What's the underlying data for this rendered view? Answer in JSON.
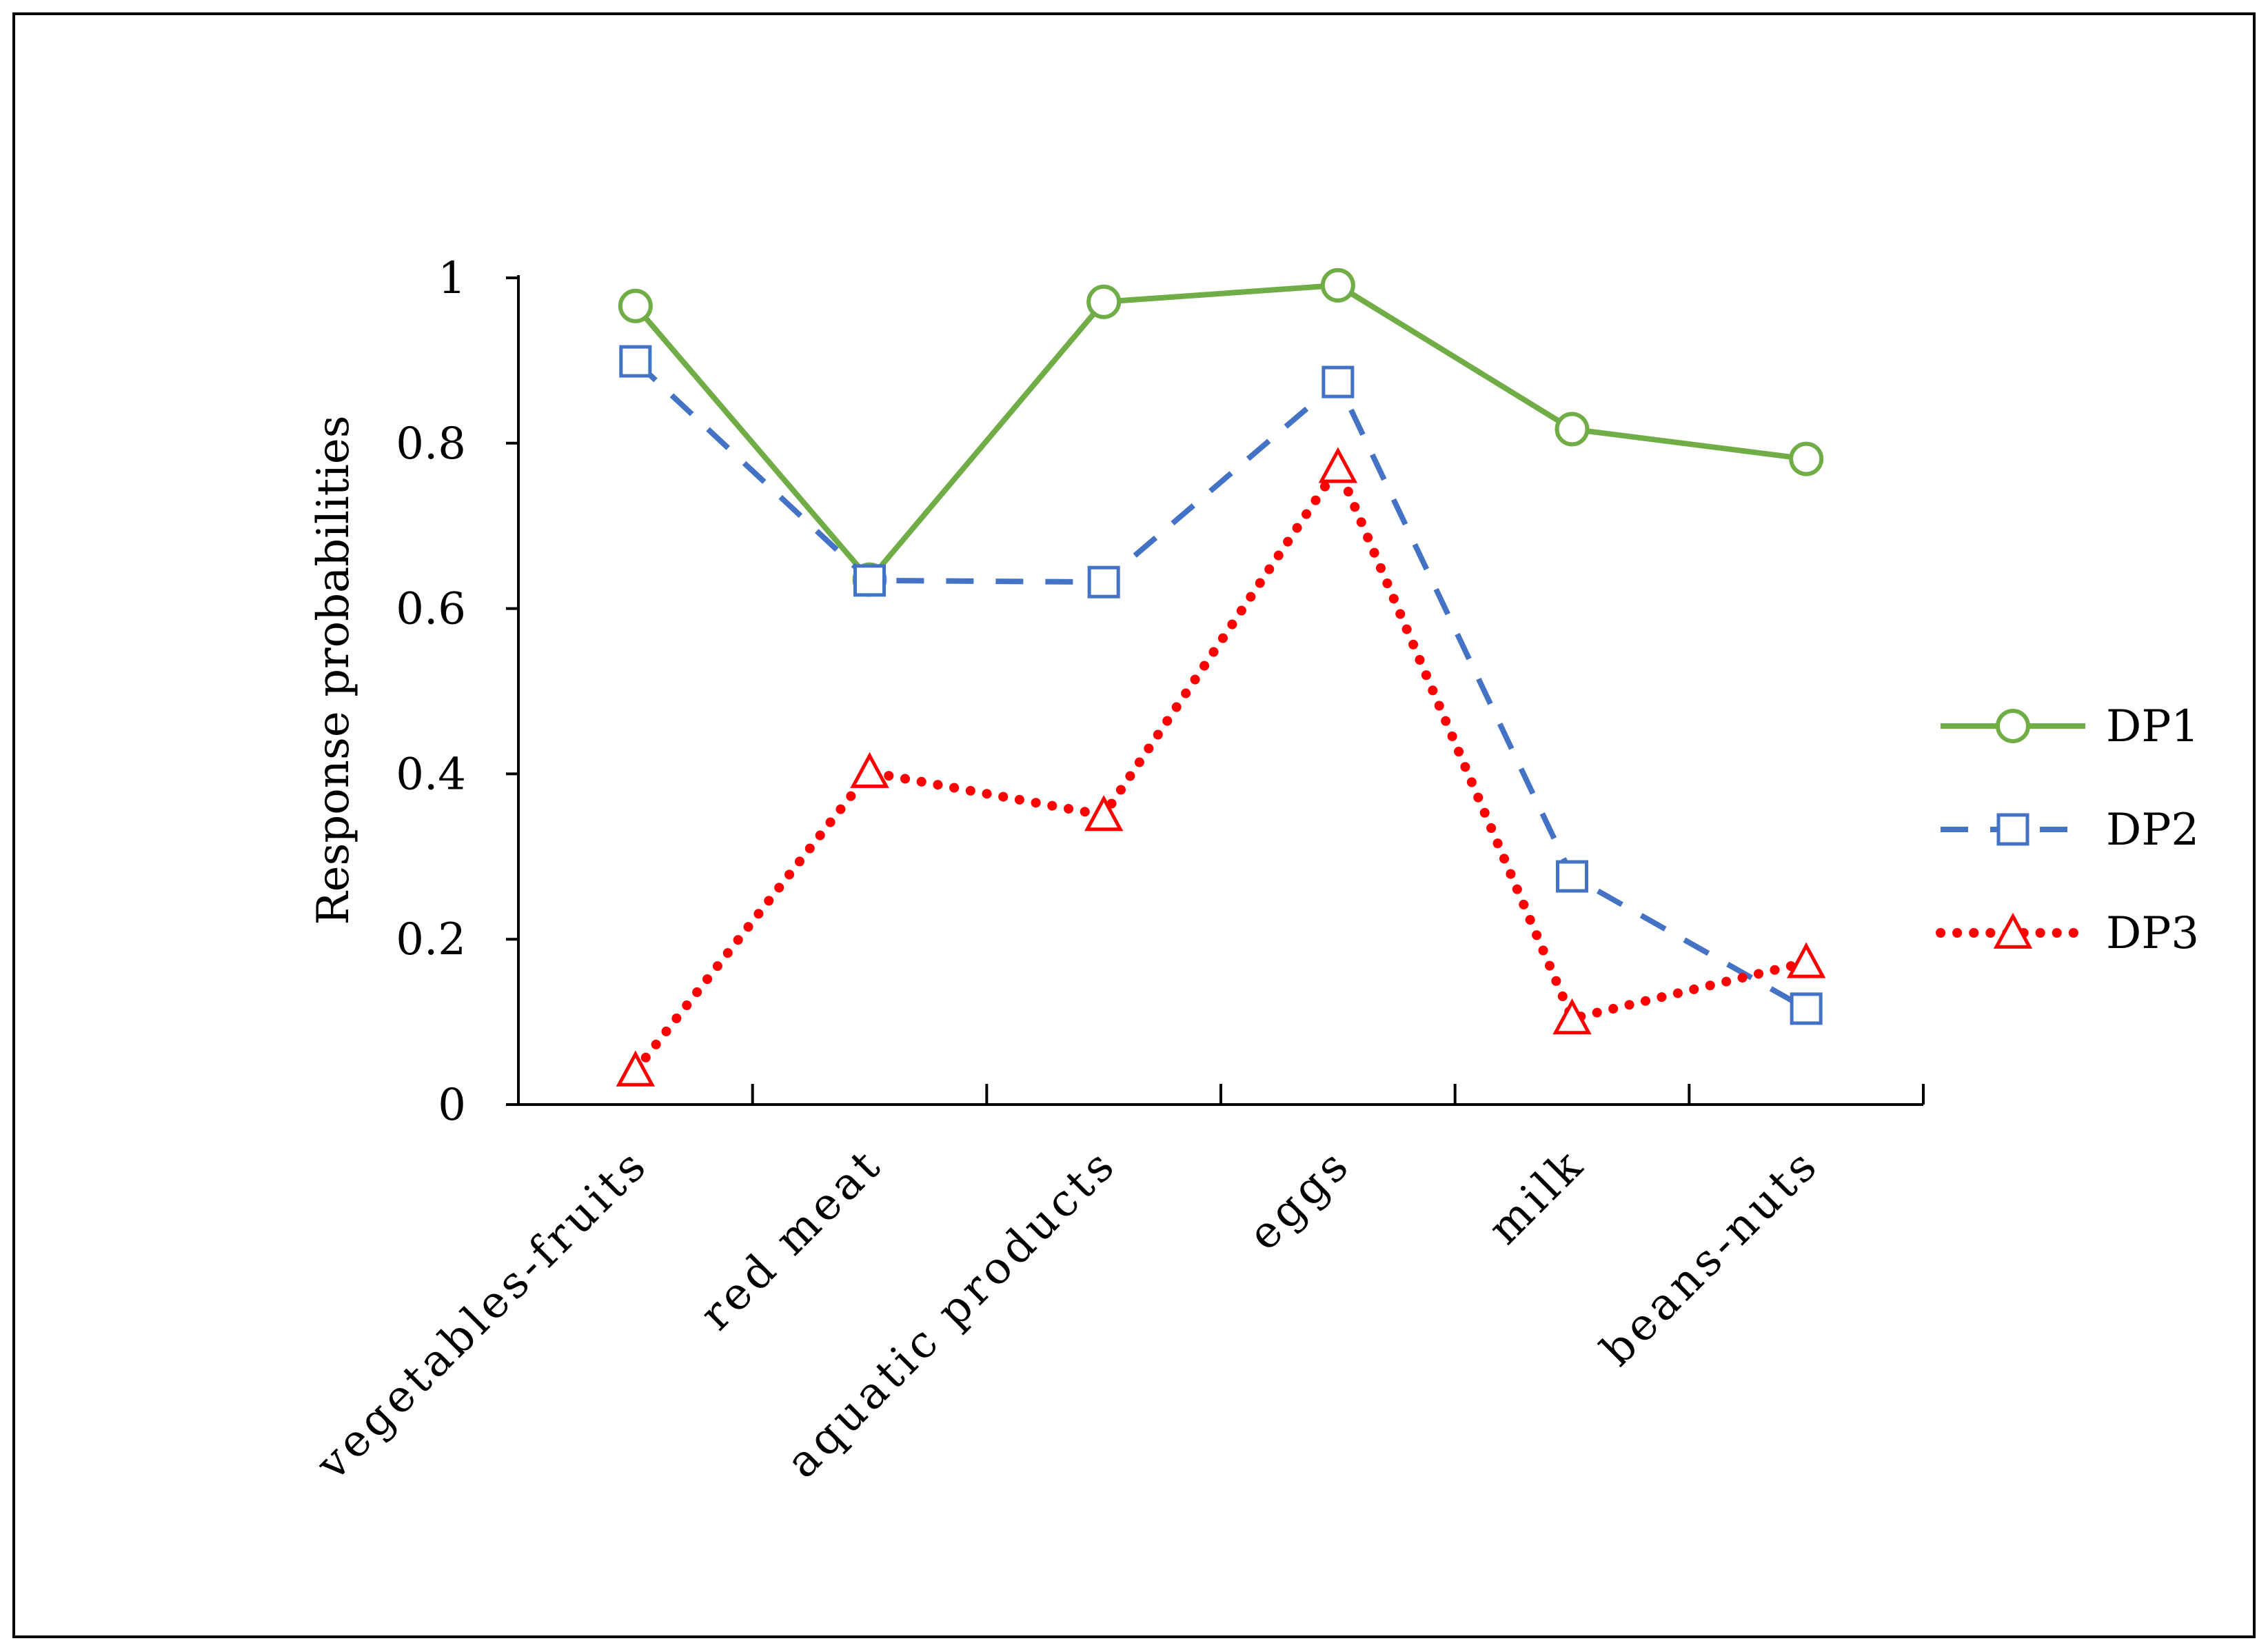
{
  "chart_data": {
    "type": "line",
    "title": "",
    "xlabel": "",
    "ylabel": "Response probabilities",
    "ylim": [
      0,
      1
    ],
    "yticks": [
      "0",
      "0.2",
      "0.4",
      "0.6",
      "0.8",
      "1"
    ],
    "categories": [
      "vegetables-fruits",
      "red meat",
      "aquatic products",
      "eggs",
      "milk",
      "beans-nuts"
    ],
    "grid": false,
    "legend_position": "right",
    "series": [
      {
        "name": "DP1",
        "values": [
          0.966,
          0.635,
          0.971,
          0.991,
          0.817,
          0.781
        ],
        "color": "#70AD47",
        "line_style": "solid",
        "marker": "circle"
      },
      {
        "name": "DP2",
        "values": [
          0.899,
          0.634,
          0.632,
          0.874,
          0.276,
          0.116
        ],
        "color": "#4472C4",
        "line_style": "dashed",
        "marker": "square"
      },
      {
        "name": "DP3",
        "values": [
          0.041,
          0.402,
          0.35,
          0.771,
          0.104,
          0.172
        ],
        "color": "#FF0000",
        "line_style": "dotted",
        "marker": "triangle"
      }
    ]
  }
}
